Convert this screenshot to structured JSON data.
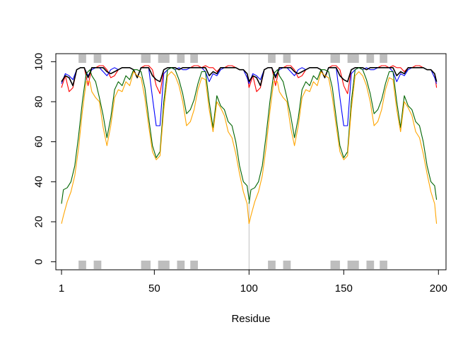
{
  "chart_data": {
    "type": "line",
    "title": "",
    "xlabel": "Residue",
    "ylabel": "",
    "xlim": [
      -2,
      204
    ],
    "ylim": [
      -4,
      104
    ],
    "x_ticks": [
      1,
      50,
      100,
      150,
      200
    ],
    "x_tick_labels": [
      "1",
      "50",
      "100",
      "150",
      "200"
    ],
    "y_ticks": [
      0,
      20,
      40,
      60,
      80,
      100
    ],
    "y_tick_labels": [
      "0",
      "20",
      "40",
      "60",
      "80",
      "100"
    ],
    "grid": false,
    "vline_x": 100,
    "highlight_regions": [
      [
        10,
        14
      ],
      [
        18,
        22
      ],
      [
        43,
        48
      ],
      [
        52,
        58
      ],
      [
        62,
        66
      ],
      [
        69,
        73
      ],
      [
        110,
        114
      ],
      [
        118,
        122
      ],
      [
        143,
        148
      ],
      [
        152,
        158
      ],
      [
        162,
        166
      ],
      [
        169,
        173
      ]
    ],
    "highlight_color": "#bebebe",
    "series": [
      {
        "color": "#ff0000",
        "x": [
          1,
          3,
          5,
          7,
          9,
          11,
          13,
          15,
          17,
          19,
          21,
          23,
          25,
          27,
          29,
          31,
          33,
          35,
          37,
          39,
          41,
          43,
          45,
          47,
          49,
          51,
          53,
          55,
          57,
          59,
          61,
          63,
          65,
          67,
          69,
          71,
          73,
          75,
          77,
          79,
          81,
          83,
          85,
          87,
          89,
          91,
          93,
          95,
          97,
          99,
          100
        ],
        "y": [
          87,
          93,
          85,
          87,
          96,
          97,
          97,
          88,
          97,
          97,
          98,
          98,
          96,
          92,
          93,
          96,
          97,
          97,
          97,
          96,
          92,
          97,
          98,
          98,
          96,
          88,
          84,
          96,
          97,
          97,
          97,
          96,
          97,
          97,
          97,
          98,
          98,
          97,
          98,
          97,
          97,
          95,
          97,
          97,
          98,
          98,
          97,
          96,
          96,
          94,
          87
        ]
      },
      {
        "color": "#0000ff",
        "x": [
          1,
          3,
          5,
          7,
          9,
          11,
          13,
          15,
          17,
          19,
          21,
          23,
          25,
          27,
          29,
          31,
          33,
          35,
          37,
          39,
          41,
          43,
          45,
          47,
          49,
          51,
          53,
          55,
          57,
          59,
          61,
          63,
          65,
          67,
          69,
          71,
          73,
          75,
          77,
          79,
          81,
          83,
          85,
          87,
          89,
          91,
          93,
          95,
          97,
          99,
          100
        ],
        "y": [
          89,
          94,
          93,
          91,
          96,
          97,
          97,
          93,
          96,
          97,
          97,
          95,
          93,
          96,
          97,
          96,
          97,
          97,
          97,
          96,
          92,
          97,
          97,
          97,
          82,
          68,
          68,
          94,
          96,
          97,
          96,
          97,
          96,
          96,
          97,
          97,
          97,
          97,
          95,
          90,
          94,
          93,
          96,
          97,
          97,
          97,
          97,
          96,
          96,
          92,
          89
        ]
      },
      {
        "color": "#000000",
        "x": [
          1,
          3,
          5,
          7,
          9,
          11,
          13,
          15,
          17,
          19,
          21,
          23,
          25,
          27,
          29,
          31,
          33,
          35,
          37,
          39,
          41,
          43,
          45,
          47,
          49,
          51,
          53,
          55,
          57,
          59,
          61,
          63,
          65,
          67,
          69,
          71,
          73,
          75,
          77,
          79,
          81,
          83,
          85,
          87,
          89,
          91,
          93,
          95,
          97,
          99,
          100
        ],
        "y": [
          90,
          93,
          92,
          88,
          96,
          97,
          97,
          92,
          97,
          97,
          97,
          97,
          95,
          94,
          95,
          96,
          97,
          97,
          97,
          96,
          92,
          97,
          97,
          97,
          93,
          91,
          90,
          96,
          97,
          97,
          97,
          96,
          97,
          97,
          97,
          97,
          97,
          97,
          97,
          93,
          95,
          94,
          97,
          97,
          97,
          97,
          97,
          96,
          96,
          94,
          90
        ]
      },
      {
        "color": "#006400",
        "x": [
          1,
          2,
          4,
          6,
          8,
          10,
          12,
          14,
          16,
          17,
          19,
          21,
          23,
          25,
          27,
          29,
          31,
          33,
          35,
          37,
          39,
          41,
          43,
          45,
          47,
          49,
          51,
          53,
          55,
          57,
          59,
          61,
          63,
          65,
          67,
          69,
          71,
          73,
          75,
          77,
          79,
          81,
          83,
          85,
          87,
          89,
          91,
          93,
          95,
          97,
          99,
          100
        ],
        "y": [
          29,
          36,
          37,
          40,
          48,
          63,
          80,
          94,
          96,
          93,
          90,
          82,
          73,
          62,
          72,
          86,
          90,
          88,
          93,
          91,
          96,
          96,
          95,
          87,
          72,
          58,
          52,
          55,
          80,
          96,
          97,
          96,
          91,
          84,
          74,
          76,
          81,
          89,
          95,
          95,
          80,
          67,
          83,
          78,
          76,
          70,
          68,
          60,
          48,
          40,
          38,
          31
        ]
      },
      {
        "color": "#ffa500",
        "x": [
          1,
          2,
          4,
          6,
          8,
          10,
          12,
          14,
          16,
          17,
          19,
          21,
          23,
          25,
          27,
          29,
          31,
          33,
          35,
          37,
          39,
          41,
          43,
          45,
          47,
          49,
          51,
          53,
          55,
          57,
          59,
          61,
          63,
          65,
          67,
          69,
          71,
          73,
          75,
          77,
          79,
          81,
          83,
          85,
          87,
          89,
          91,
          93,
          95,
          97,
          99,
          100
        ],
        "y": [
          19,
          23,
          30,
          35,
          43,
          57,
          75,
          90,
          90,
          85,
          82,
          80,
          67,
          58,
          68,
          82,
          86,
          85,
          90,
          88,
          95,
          93,
          92,
          82,
          68,
          55,
          51,
          53,
          76,
          93,
          95,
          93,
          88,
          80,
          68,
          70,
          76,
          86,
          92,
          91,
          76,
          65,
          80,
          77,
          73,
          65,
          62,
          54,
          44,
          35,
          29,
          19
        ]
      }
    ]
  }
}
